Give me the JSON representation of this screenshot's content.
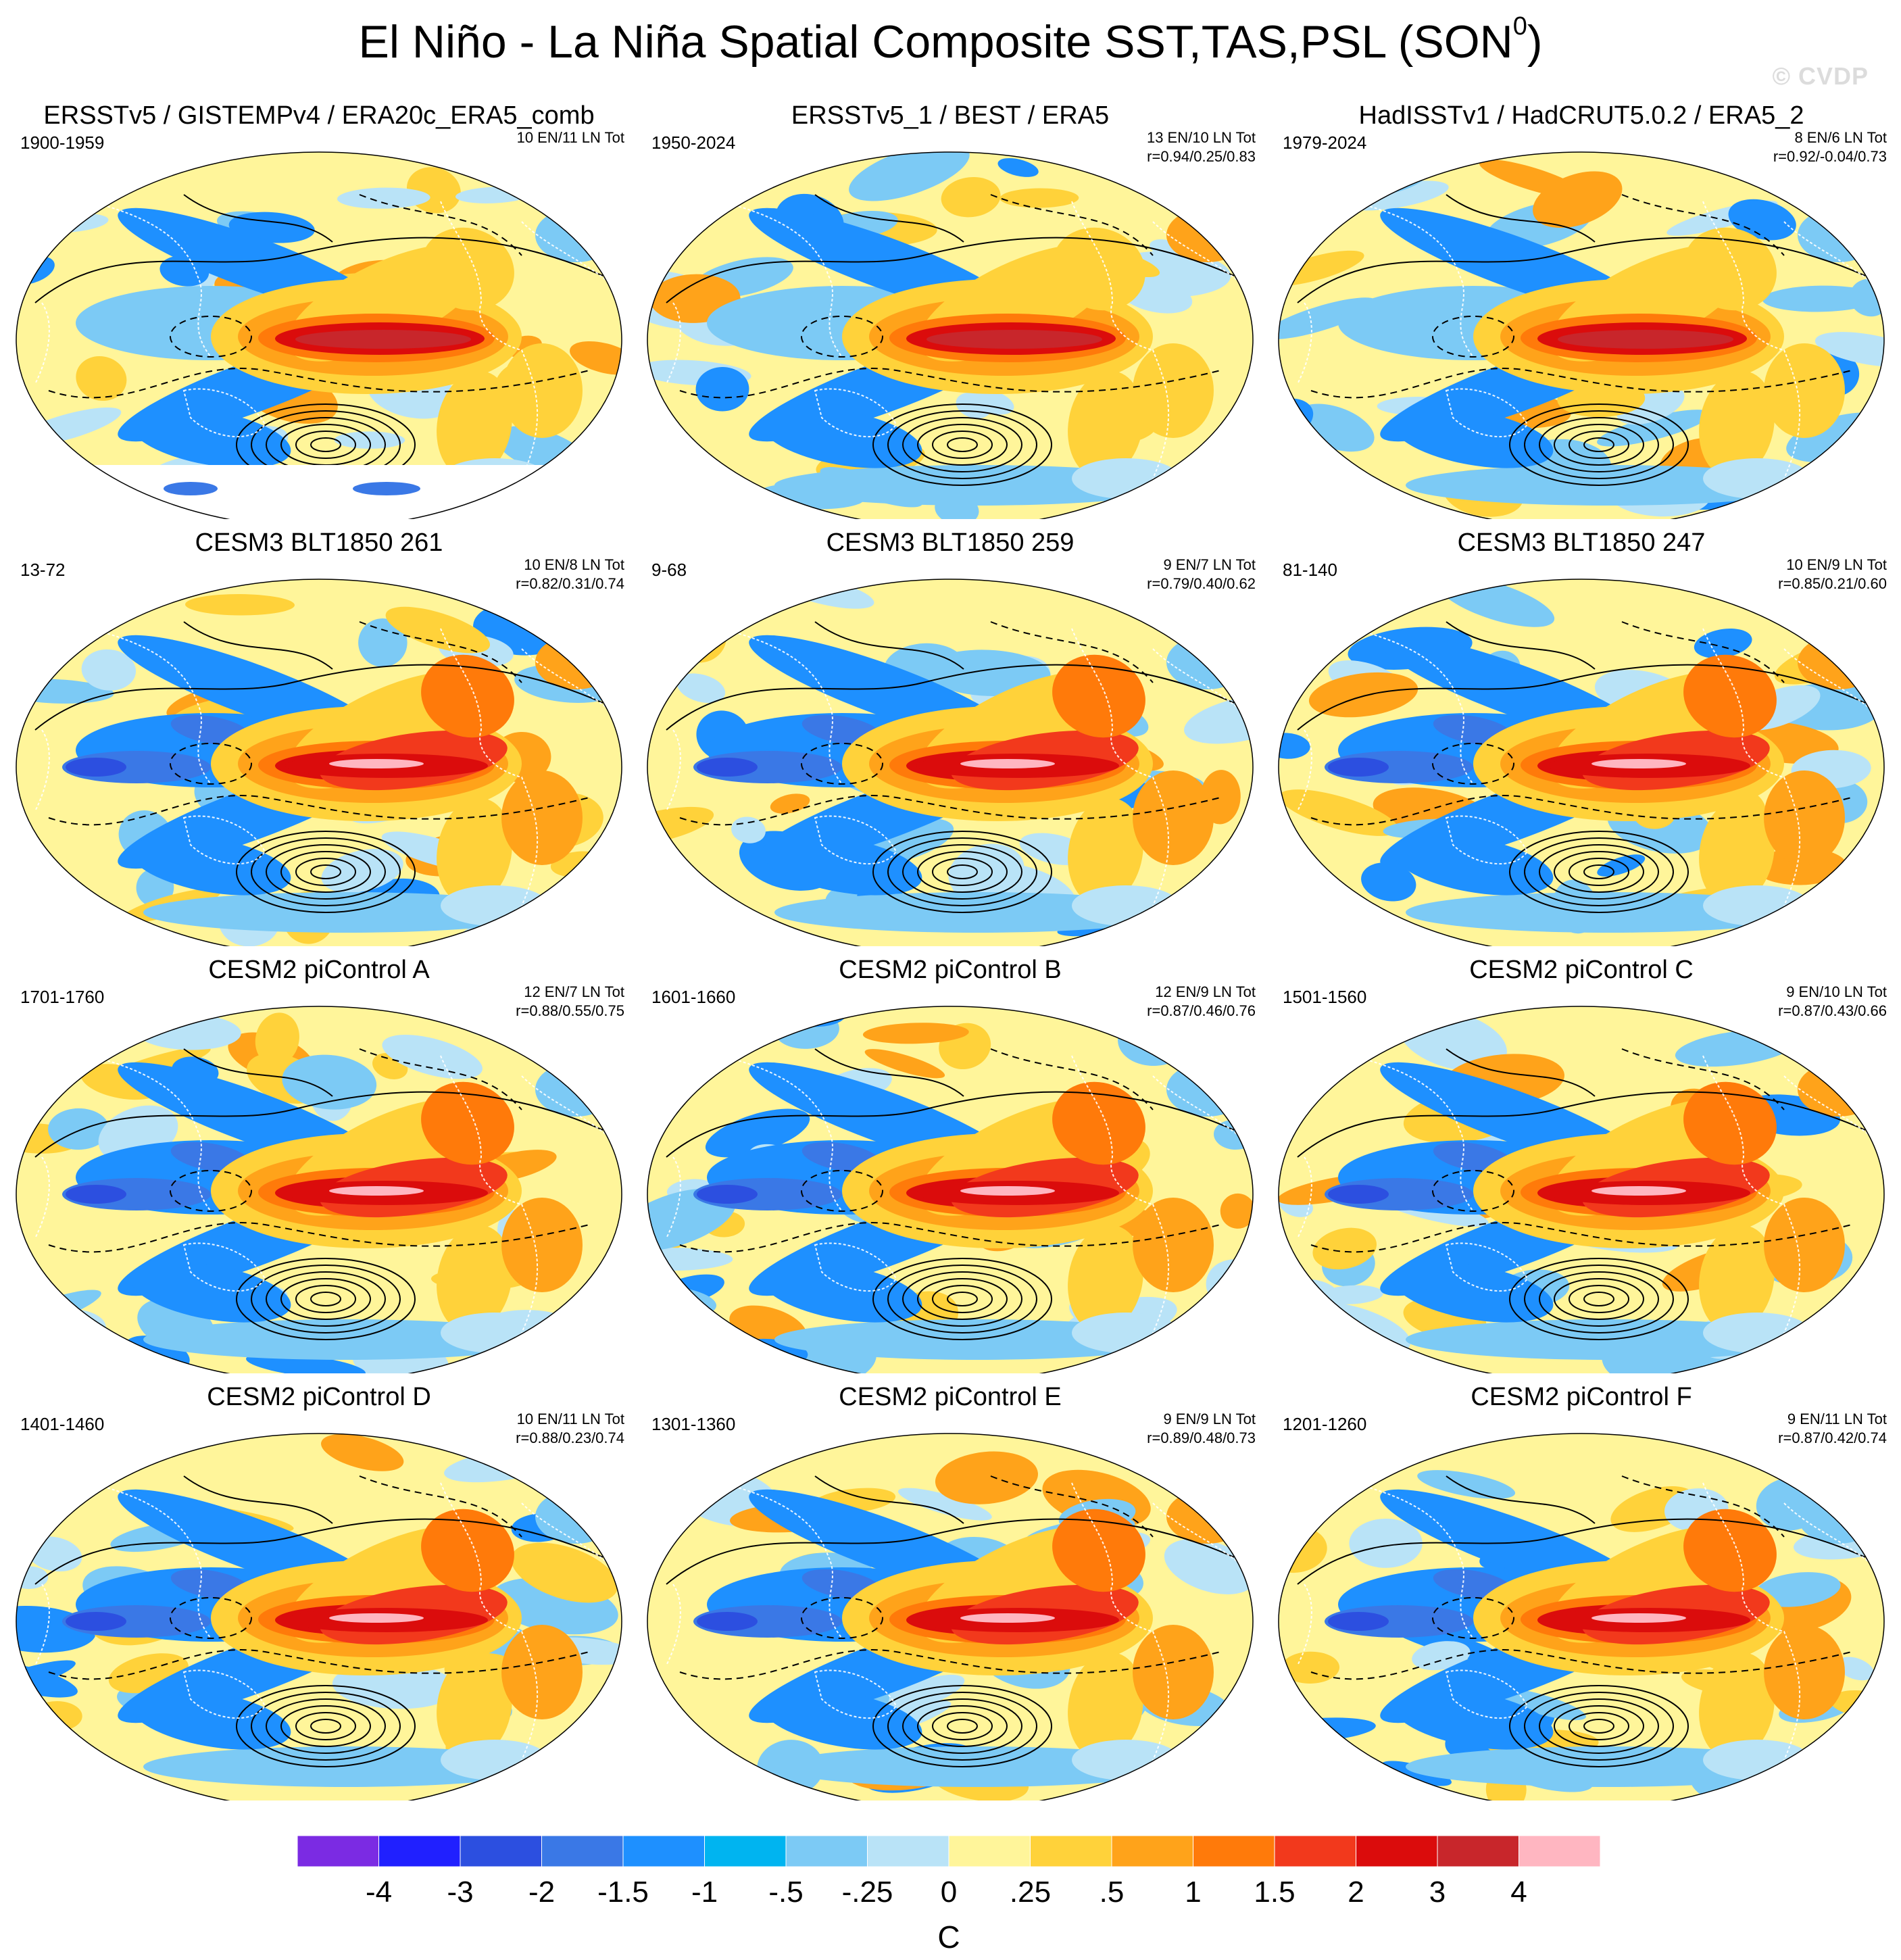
{
  "title": {
    "main": "El Niño - La Niña Spatial Composite SST,TAS,PSL (SON",
    "superscript": "0",
    "close": ")"
  },
  "watermark": "© CVDP",
  "panels": [
    {
      "title": "ERSSTv5 / GISTEMPv4 / ERA20c_ERA5_comb",
      "period": "1900-1959",
      "counts": "10 EN/11 LN Tot",
      "corr": ""
    },
    {
      "title": "ERSSTv5_1 / BEST / ERA5",
      "period": "1950-2024",
      "counts": "13 EN/10 LN Tot",
      "corr": "r=0.94/0.25/0.83"
    },
    {
      "title": "HadISSTv1 / HadCRUT5.0.2 / ERA5_2",
      "period": "1979-2024",
      "counts": "8 EN/6 LN Tot",
      "corr": "r=0.92/-0.04/0.73"
    },
    {
      "title": "CESM3 BLT1850 261",
      "period": "13-72",
      "counts": "10 EN/8 LN Tot",
      "corr": "r=0.82/0.31/0.74"
    },
    {
      "title": "CESM3 BLT1850 259",
      "period": "9-68",
      "counts": "9 EN/7 LN Tot",
      "corr": "r=0.79/0.40/0.62"
    },
    {
      "title": "CESM3 BLT1850 247",
      "period": "81-140",
      "counts": "10 EN/9 LN Tot",
      "corr": "r=0.85/0.21/0.60"
    },
    {
      "title": "CESM2 piControl A",
      "period": "1701-1760",
      "counts": "12 EN/7 LN Tot",
      "corr": "r=0.88/0.55/0.75"
    },
    {
      "title": "CESM2 piControl B",
      "period": "1601-1660",
      "counts": "12 EN/9 LN Tot",
      "corr": "r=0.87/0.46/0.76"
    },
    {
      "title": "CESM2 piControl C",
      "period": "1501-1560",
      "counts": "9 EN/10 LN Tot",
      "corr": "r=0.87/0.43/0.66"
    },
    {
      "title": "CESM2 piControl D",
      "period": "1401-1460",
      "counts": "10 EN/11 LN Tot",
      "corr": "r=0.88/0.23/0.74"
    },
    {
      "title": "CESM2 piControl E",
      "period": "1301-1360",
      "counts": "9 EN/9 LN Tot",
      "corr": "r=0.89/0.48/0.73"
    },
    {
      "title": "CESM2 piControl F",
      "period": "1201-1260",
      "counts": "9 EN/11 LN Tot",
      "corr": "r=0.87/0.42/0.74"
    }
  ],
  "chart_data": {
    "type": "heatmap",
    "title": "El Niño - La Niña Spatial Composite SST,TAS,PSL (SON0)",
    "projection": "global equal-area (ellipse), Pacific-centered",
    "panel_titles": [
      "ERSSTv5 / GISTEMPv4 / ERA20c_ERA5_comb",
      "ERSSTv5_1 / BEST / ERA5",
      "HadISSTv1 / HadCRUT5.0.2 / ERA5_2",
      "CESM3 BLT1850 261",
      "CESM3 BLT1850 259",
      "CESM3 BLT1850 247",
      "CESM2 piControl A",
      "CESM2 piControl B",
      "CESM2 piControl C",
      "CESM2 piControl D",
      "CESM2 piControl E",
      "CESM2 piControl F"
    ],
    "colorbar": {
      "units": "C",
      "tick_labels": [
        "-4",
        "-3",
        "-2",
        "-1.5",
        "-1",
        "-.5",
        "-.25",
        "0",
        ".25",
        ".5",
        "1",
        "1.5",
        "2",
        "3",
        "4"
      ],
      "colors": [
        "#7b2be3",
        "#2020ff",
        "#2c4fe0",
        "#3a78e6",
        "#1e90ff",
        "#00b4f0",
        "#7ccaf5",
        "#b9e3f7",
        "#fff59a",
        "#ffd23a",
        "#ffa31a",
        "#ff7a0a",
        "#f2391c",
        "#db0c0c",
        "#c8262b",
        "#ffb6c1"
      ]
    },
    "contours": "PSL composite (solid positive, dashed negative)"
  }
}
